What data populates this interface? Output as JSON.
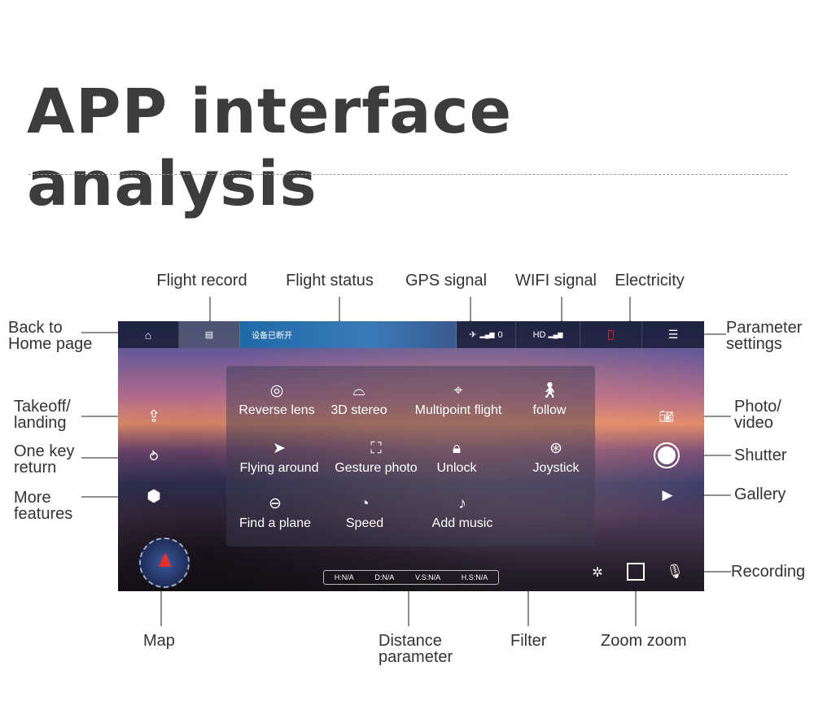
{
  "title": "APP interface analysis",
  "callouts": {
    "flight_record": "Flight record",
    "flight_status": "Flight status",
    "gps_signal": "GPS signal",
    "wifi_signal": "WIFI signal",
    "electricity": "Electricity",
    "back_home_1": "Back to",
    "back_home_2": "Home page",
    "param_1": "Parameter",
    "param_2": "settings",
    "takeoff_1": "Takeoff/",
    "takeoff_2": "landing",
    "return_1": "One key",
    "return_2": "return",
    "more_1": "More",
    "more_2": "features",
    "photo_1": "Photo/",
    "photo_2": "video",
    "shutter": "Shutter",
    "gallery": "Gallery",
    "recording": "Recording",
    "map": "Map",
    "distance_1": "Distance",
    "distance_2": "parameter",
    "filter": "Filter",
    "zoom": "Zoom zoom"
  },
  "app": {
    "status_text": "设备已断开",
    "gps_count": "0",
    "wifi_label": "HD",
    "battery_color": "#e02020",
    "menu": [
      {
        "label": "Reverse lens",
        "icon": "reverse-lens-icon"
      },
      {
        "label": "3D stereo",
        "icon": "vr-glasses-icon"
      },
      {
        "label": "Multipoint flight",
        "icon": "waypoint-icon"
      },
      {
        "label": "follow",
        "icon": "walking-person-icon"
      },
      {
        "label": "Flying around",
        "icon": "orbit-icon"
      },
      {
        "label": "Gesture photo",
        "icon": "gesture-icon"
      },
      {
        "label": "Unlock",
        "icon": "lock-icon"
      },
      {
        "label": "Joystick",
        "icon": "joystick-icon"
      },
      {
        "label": "Find a plane",
        "icon": "search-plane-icon"
      },
      {
        "label": "Speed",
        "icon": "speedometer-icon"
      },
      {
        "label": "Add music",
        "icon": "music-note-icon"
      }
    ],
    "distance": [
      "H:N/A",
      "D:N/A",
      "V.S:N/A",
      "H.S:N/A"
    ]
  }
}
